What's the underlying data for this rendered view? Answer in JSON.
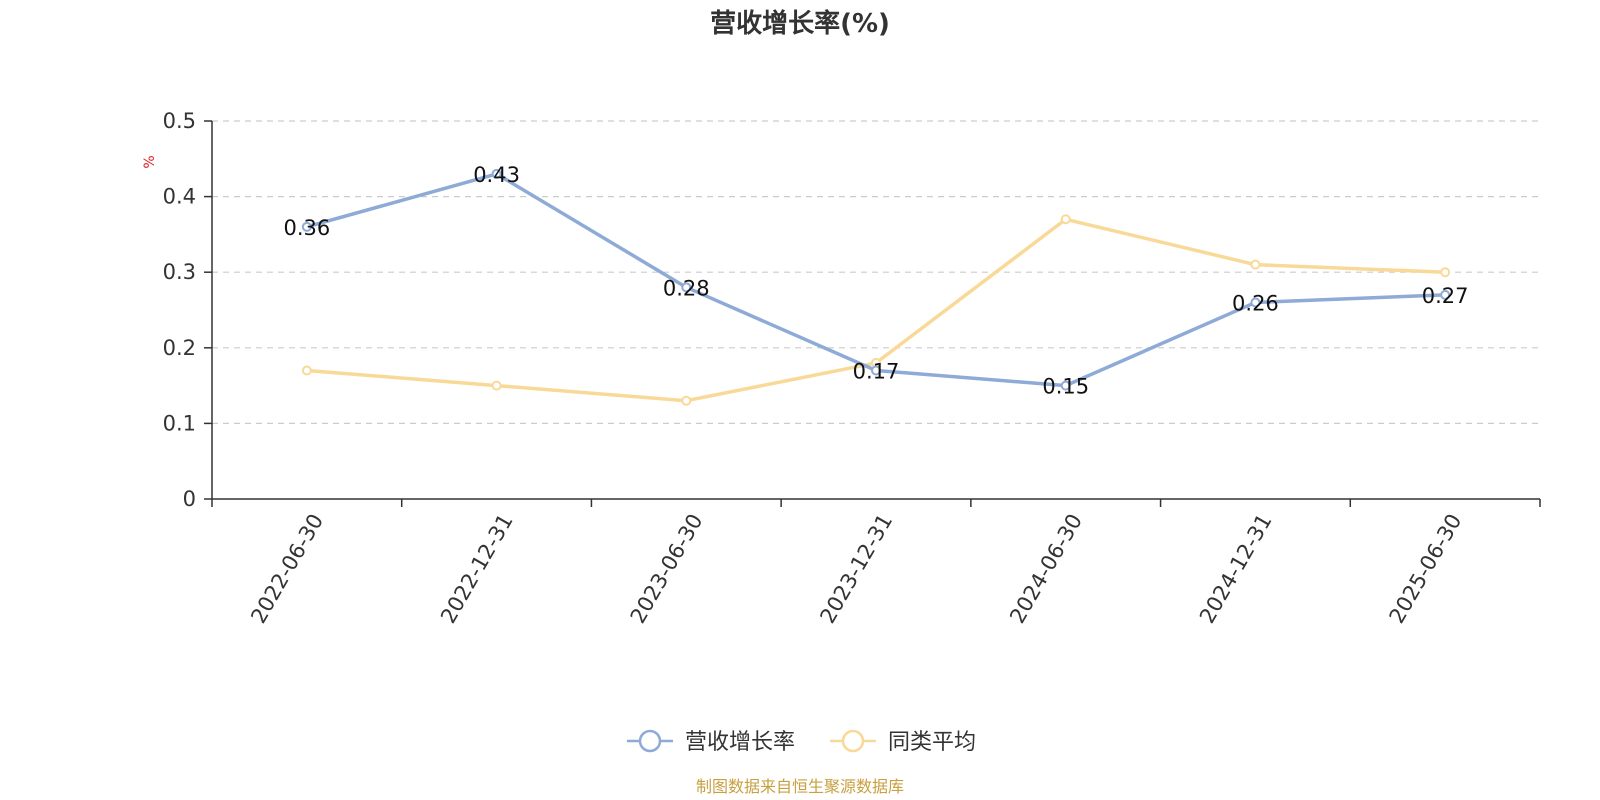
{
  "chart_data": {
    "type": "line",
    "title": "营收增长率(%)",
    "ylabel": "%",
    "xlabel": "",
    "categories": [
      "2022-06-30",
      "2022-12-31",
      "2023-06-30",
      "2023-12-31",
      "2024-06-30",
      "2024-12-31",
      "2025-06-30"
    ],
    "series": [
      {
        "name": "营收增长率",
        "values": [
          0.36,
          0.43,
          0.28,
          0.17,
          0.15,
          0.26,
          0.27
        ],
        "color": "#8eaad6",
        "labels": [
          "0.36",
          "0.43",
          "0.28",
          "0.17",
          "0.15",
          "0.26",
          "0.27"
        ]
      },
      {
        "name": "同类平均",
        "values": [
          0.17,
          0.15,
          0.13,
          0.18,
          0.37,
          0.31,
          0.3
        ],
        "color": "#f9d997"
      }
    ],
    "ylim": [
      0,
      0.5
    ],
    "yticks": [
      "0",
      "0.1",
      "0.2",
      "0.3",
      "0.4",
      "0.5"
    ],
    "grid": true,
    "legend_position": "bottom-center",
    "unit_color": "#e02020"
  },
  "footer": {
    "source": "制图数据来自恒生聚源数据库"
  }
}
